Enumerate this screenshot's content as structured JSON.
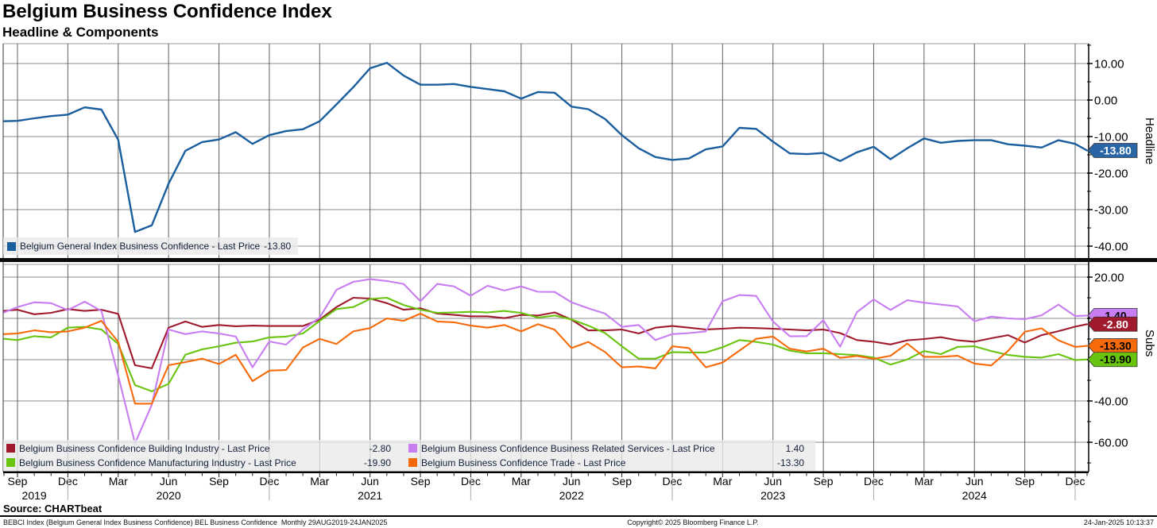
{
  "header": {
    "title": "Belgium Business Confidence Index",
    "subtitle": "Headline & Components"
  },
  "colors": {
    "headline": "#1b5e9e",
    "headline_tag_bg": "#2a66a5",
    "building": "#a01a2e",
    "manufacturing": "#68c40e",
    "services": "#c87ef0",
    "trade": "#f76a0a",
    "grid_vertical": "#5f6062",
    "grid_horizontal": "#8c8c8c",
    "legend_bg": "#e9e9e9"
  },
  "axis_titles": {
    "top_panel": "Headline",
    "bottom_panel": "Subs"
  },
  "legend_top": {
    "label": "Belgium General Index Business Confidence - Last Price",
    "value": "-13.80"
  },
  "legend_bottom": [
    {
      "label": "Belgium Business Confidence Building Industry - Last Price",
      "value": "-2.80",
      "color_key": "building"
    },
    {
      "label": "Belgium Business Confidence Business Related Services - Last Price",
      "value": "1.40",
      "color_key": "services"
    },
    {
      "label": "Belgium Business Confidence Manufacturing Industry - Last Price",
      "value": "-19.90",
      "color_key": "manufacturing"
    },
    {
      "label": "Belgium Business Confidence Trade - Last Price",
      "value": "-13.30",
      "color_key": "trade"
    }
  ],
  "footer": {
    "source": "Source: CHARTbeat",
    "description": "BEBCI Index (Belgium General Index Business Confidence) BEL Business Confidence  Monthly 29AUG2019-24JAN2025",
    "copyright": "Copyright© 2025 Bloomberg Finance L.P.",
    "timestamp": "24-Jan-2025 10:13:37"
  },
  "chart_data": [
    {
      "type": "line",
      "panel": "Headline",
      "x_range": "monthly, Aug 2019 - Jan 2025",
      "x_tick_labels": [
        "Sep",
        "Dec",
        "Mar",
        "Jun",
        "Sep",
        "Dec",
        "Mar",
        "Jun",
        "Sep",
        "Dec",
        "Mar",
        "Jun",
        "Sep",
        "Dec",
        "Mar",
        "Jun",
        "Sep",
        "Dec",
        "Mar",
        "Jun",
        "Sep",
        "Dec"
      ],
      "years": [
        {
          "label": "2019",
          "month_index": 2
        },
        {
          "label": "2020",
          "month_index": 10
        },
        {
          "label": "2021",
          "month_index": 22
        },
        {
          "label": "2022",
          "month_index": 34
        },
        {
          "label": "2023",
          "month_index": 46
        },
        {
          "label": "2024",
          "month_index": 58
        }
      ],
      "y_ticks": [
        10,
        0,
        -10,
        -20,
        -30,
        -40
      ],
      "y_minor_ticks": [
        15,
        5,
        -5,
        -15,
        -25,
        -35
      ],
      "ylim": [
        -43.3,
        15.4
      ],
      "grid": true,
      "legend_position": "bottom-left-strip",
      "series": [
        {
          "name": "Belgium General Index Business Confidence",
          "color_key": "headline",
          "last_price": -13.8,
          "tag": {
            "text": "-13.80",
            "text_color": "#ffffff",
            "bg_key": "headline_tag_bg"
          },
          "values": [
            -5.8,
            -5.7,
            -5.0,
            -4.4,
            -4.0,
            -2.0,
            -2.6,
            -10.9,
            -36.1,
            -34.3,
            -22.9,
            -13.9,
            -11.5,
            -10.8,
            -8.8,
            -12.0,
            -9.6,
            -8.5,
            -8.0,
            -5.8,
            -1.2,
            3.5,
            8.7,
            10.2,
            6.7,
            4.2,
            4.2,
            4.4,
            3.6,
            3.0,
            2.4,
            0.4,
            2.2,
            2.0,
            -1.8,
            -2.5,
            -5.2,
            -9.6,
            -13.2,
            -15.6,
            -16.4,
            -16.0,
            -13.5,
            -12.7,
            -7.6,
            -7.9,
            -11.4,
            -14.6,
            -14.8,
            -14.5,
            -16.7,
            -14.3,
            -12.8,
            -16.2,
            -13.2,
            -10.5,
            -11.7,
            -11.2,
            -11.0,
            -11.0,
            -12.1,
            -12.5,
            -13.0,
            -11.0,
            -12.0,
            -13.8
          ]
        }
      ]
    },
    {
      "type": "line",
      "panel": "Subs",
      "x_range": "monthly, Aug 2019 - Jan 2025",
      "y_ticks": [
        20,
        0,
        -20,
        -40,
        -60
      ],
      "y_minor_ticks": [
        10,
        -10,
        -30,
        -50,
        -70
      ],
      "ylim": [
        -74.6,
        26.2
      ],
      "grid": true,
      "series": [
        {
          "name": "Belgium Business Confidence Building Industry",
          "color_key": "building",
          "last_price": -2.8,
          "tag": {
            "text": "-2.80",
            "text_color": "#ffffff",
            "bg_key": "building"
          },
          "values": [
            3.6,
            4.2,
            2.0,
            2.7,
            4.5,
            3.6,
            4.2,
            2.2,
            -22.7,
            -24.2,
            -4.5,
            -1.5,
            -4.1,
            -3.2,
            -3.8,
            -3.5,
            -3.7,
            -3.7,
            -3.7,
            -0.6,
            5.5,
            10.0,
            9.6,
            7.4,
            4.2,
            4.9,
            2.3,
            1.7,
            1.0,
            1.0,
            0.1,
            1.7,
            1.4,
            2.9,
            -0.6,
            -5.8,
            -5.8,
            -5.4,
            -7.3,
            -4.5,
            -3.7,
            -4.5,
            -5.4,
            -5.0,
            -4.5,
            -4.7,
            -5.0,
            -5.4,
            -5.8,
            -5.4,
            -7.1,
            -10.5,
            -11.3,
            -12.6,
            -10.6,
            -10.0,
            -9.1,
            -10.6,
            -11.3,
            -9.6,
            -8.1,
            -11.7,
            -8.1,
            -6.2,
            -4.0,
            -2.8
          ]
        },
        {
          "name": "Belgium Business Confidence Manufacturing Industry",
          "color_key": "manufacturing",
          "last_price": -19.9,
          "tag": {
            "text": "-19.90",
            "text_color": "#000000",
            "bg_key": "manufacturing"
          },
          "values": [
            -9.9,
            -10.5,
            -8.6,
            -9.2,
            -4.5,
            -4.1,
            -5.4,
            -12.4,
            -32.3,
            -35.3,
            -31.7,
            -17.6,
            -15.0,
            -13.5,
            -11.8,
            -11.2,
            -9.2,
            -8.8,
            -7.3,
            -1.2,
            4.5,
            5.5,
            9.4,
            10.0,
            6.5,
            4.2,
            2.7,
            2.9,
            3.2,
            2.9,
            3.6,
            2.7,
            0.4,
            1.4,
            -0.5,
            -3.5,
            -7.1,
            -13.5,
            -19.5,
            -19.5,
            -16.3,
            -16.5,
            -16.5,
            -14.0,
            -10.5,
            -11.4,
            -12.7,
            -15.6,
            -16.9,
            -16.9,
            -17.3,
            -17.8,
            -19.0,
            -22.4,
            -19.9,
            -15.8,
            -17.3,
            -13.8,
            -13.5,
            -15.8,
            -17.7,
            -18.6,
            -19.0,
            -17.3,
            -20.2,
            -19.9
          ]
        },
        {
          "name": "Belgium Business Confidence Business Related Services",
          "color_key": "services",
          "last_price": 1.4,
          "tag": {
            "text": "1.40",
            "text_color": "#000000",
            "bg_key": "services"
          },
          "values": [
            2.9,
            5.5,
            7.8,
            7.4,
            4.0,
            8.1,
            3.6,
            -27.8,
            -60.5,
            -41.9,
            -5.4,
            -7.6,
            -6.3,
            -7.3,
            -8.8,
            -23.7,
            -11.2,
            -12.7,
            -5.4,
            0.4,
            13.8,
            17.7,
            19.0,
            18.1,
            16.7,
            8.3,
            16.7,
            15.5,
            11.0,
            15.8,
            13.5,
            15.5,
            12.9,
            12.8,
            7.8,
            4.9,
            2.3,
            -4.1,
            -3.2,
            -10.5,
            -7.6,
            -7.1,
            -6.3,
            8.3,
            11.3,
            10.9,
            -1.5,
            -8.6,
            -8.6,
            -0.9,
            -13.7,
            3.0,
            9.2,
            4.1,
            8.8,
            7.6,
            6.7,
            5.8,
            -1.4,
            0.9,
            0.0,
            -0.4,
            1.5,
            6.7,
            1.1,
            1.4
          ]
        },
        {
          "name": "Belgium Business Confidence Trade",
          "color_key": "trade",
          "last_price": -13.3,
          "tag": {
            "text": "-13.30",
            "text_color": "#000000",
            "bg_key": "trade"
          },
          "values": [
            -7.6,
            -7.3,
            -5.8,
            -6.7,
            -6.3,
            -4.5,
            -1.2,
            -11.4,
            -41.3,
            -41.3,
            -22.7,
            -21.2,
            -19.5,
            -22.1,
            -17.6,
            -30.4,
            -25.3,
            -25.0,
            -14.1,
            -9.9,
            -12.4,
            -6.3,
            -4.7,
            0.0,
            -1.2,
            2.3,
            -1.5,
            -1.9,
            -3.5,
            -4.5,
            -3.2,
            -6.3,
            -2.8,
            -5.5,
            -14.4,
            -11.4,
            -16.3,
            -23.7,
            -23.3,
            -24.2,
            -13.5,
            -14.4,
            -23.7,
            -21.4,
            -15.6,
            -9.9,
            -8.8,
            -14.7,
            -16.0,
            -14.7,
            -19.1,
            -18.2,
            -19.6,
            -18.1,
            -12.2,
            -18.6,
            -18.6,
            -18.1,
            -21.9,
            -22.8,
            -15.8,
            -6.5,
            -4.8,
            -10.6,
            -13.8,
            -13.3
          ]
        }
      ]
    }
  ]
}
